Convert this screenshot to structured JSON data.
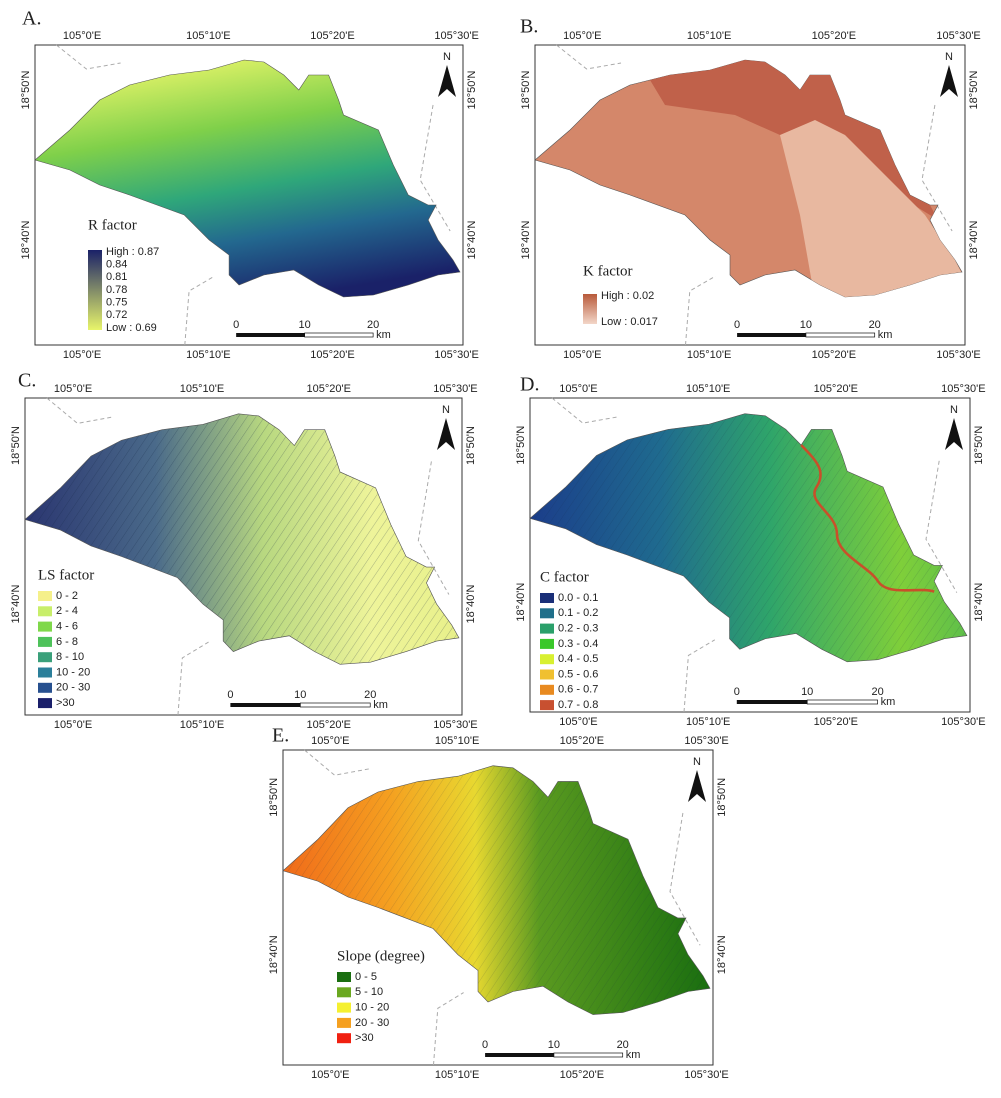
{
  "panels": [
    {
      "label": "A.",
      "lon_labels": [
        "105°0'E",
        "105°10'E",
        "105°20'E",
        "105°30'E"
      ],
      "lat_labels": [
        "18°50'N",
        "18°40'N"
      ],
      "north": "N",
      "scale_labels": [
        "0",
        "10",
        "20",
        "km"
      ],
      "legend": {
        "title": "R factor",
        "kind": "gradient",
        "colors": [
          "#1a2168",
          "#e8f56a"
        ],
        "items": [
          {
            "label": "High : 0.87"
          },
          {
            "label": "0.84"
          },
          {
            "label": "0.81"
          },
          {
            "label": "0.78"
          },
          {
            "label": "0.75"
          },
          {
            "label": "0.72"
          },
          {
            "label": "Low : 0.69"
          }
        ]
      }
    },
    {
      "label": "B.",
      "lon_labels": [
        "105°0'E",
        "105°10'E",
        "105°20'E",
        "105°30'E"
      ],
      "lat_labels": [
        "18°50'N",
        "18°40'N"
      ],
      "north": "N",
      "scale_labels": [
        "0",
        "10",
        "20",
        "km"
      ],
      "legend": {
        "title": "K factor",
        "kind": "gradient",
        "colors": [
          "#b85a3a",
          "#f3d6c8"
        ],
        "items": [
          {
            "label": "High : 0.02"
          },
          {
            "label": "Low : 0.017"
          }
        ]
      }
    },
    {
      "label": "C.",
      "lon_labels": [
        "105°0'E",
        "105°10'E",
        "105°20'E",
        "105°30'E"
      ],
      "lat_labels": [
        "18°50'N",
        "18°40'N"
      ],
      "north": "N",
      "scale_labels": [
        "0",
        "10",
        "20",
        "km"
      ],
      "legend": {
        "title": "LS factor",
        "kind": "classes",
        "items": [
          {
            "label": "0 - 2",
            "color": "#f5f08a"
          },
          {
            "label": "2 - 4",
            "color": "#c8ee6a"
          },
          {
            "label": "4 - 6",
            "color": "#7fd84a"
          },
          {
            "label": "6 - 8",
            "color": "#4ec25a"
          },
          {
            "label": "8 - 10",
            "color": "#3aa07a"
          },
          {
            "label": "10 - 20",
            "color": "#2b7f9a"
          },
          {
            "label": "20 - 30",
            "color": "#27508f"
          },
          {
            "label": ">30",
            "color": "#1a1f6a"
          }
        ]
      }
    },
    {
      "label": "D.",
      "lon_labels": [
        "105°0'E",
        "105°10'E",
        "105°20'E",
        "105°30'E"
      ],
      "lat_labels": [
        "18°50'N",
        "18°40'N"
      ],
      "north": "N",
      "scale_labels": [
        "0",
        "10",
        "20",
        "km"
      ],
      "legend": {
        "title": "C factor",
        "kind": "classes",
        "items": [
          {
            "label": "0.0 - 0.1",
            "color": "#1a2f78"
          },
          {
            "label": "0.1 - 0.2",
            "color": "#1f6f8a"
          },
          {
            "label": "0.2 - 0.3",
            "color": "#2aa06a"
          },
          {
            "label": "0.3 - 0.4",
            "color": "#3ac82a"
          },
          {
            "label": "0.4 - 0.5",
            "color": "#d8f030"
          },
          {
            "label": "0.5 - 0.6",
            "color": "#f0c030"
          },
          {
            "label": "0.6 - 0.7",
            "color": "#e88a20"
          },
          {
            "label": "0.7 - 0.8",
            "color": "#c85030"
          }
        ]
      }
    },
    {
      "label": "E.",
      "lon_labels": [
        "105°0'E",
        "105°10'E",
        "105°20'E",
        "105°30'E"
      ],
      "lat_labels": [
        "18°50'N",
        "18°40'N"
      ],
      "north": "N",
      "scale_labels": [
        "0",
        "10",
        "20",
        "km"
      ],
      "legend": {
        "title": "Slope (degree)",
        "kind": "classes",
        "items": [
          {
            "label": "0 - 5",
            "color": "#1a6e10"
          },
          {
            "label": "5 - 10",
            "color": "#6aa820"
          },
          {
            "label": "10 - 20",
            "color": "#f5f030"
          },
          {
            "label": "20 - 30",
            "color": "#f5a020"
          },
          {
            "label": ">30",
            "color": "#f02010"
          }
        ]
      }
    }
  ]
}
